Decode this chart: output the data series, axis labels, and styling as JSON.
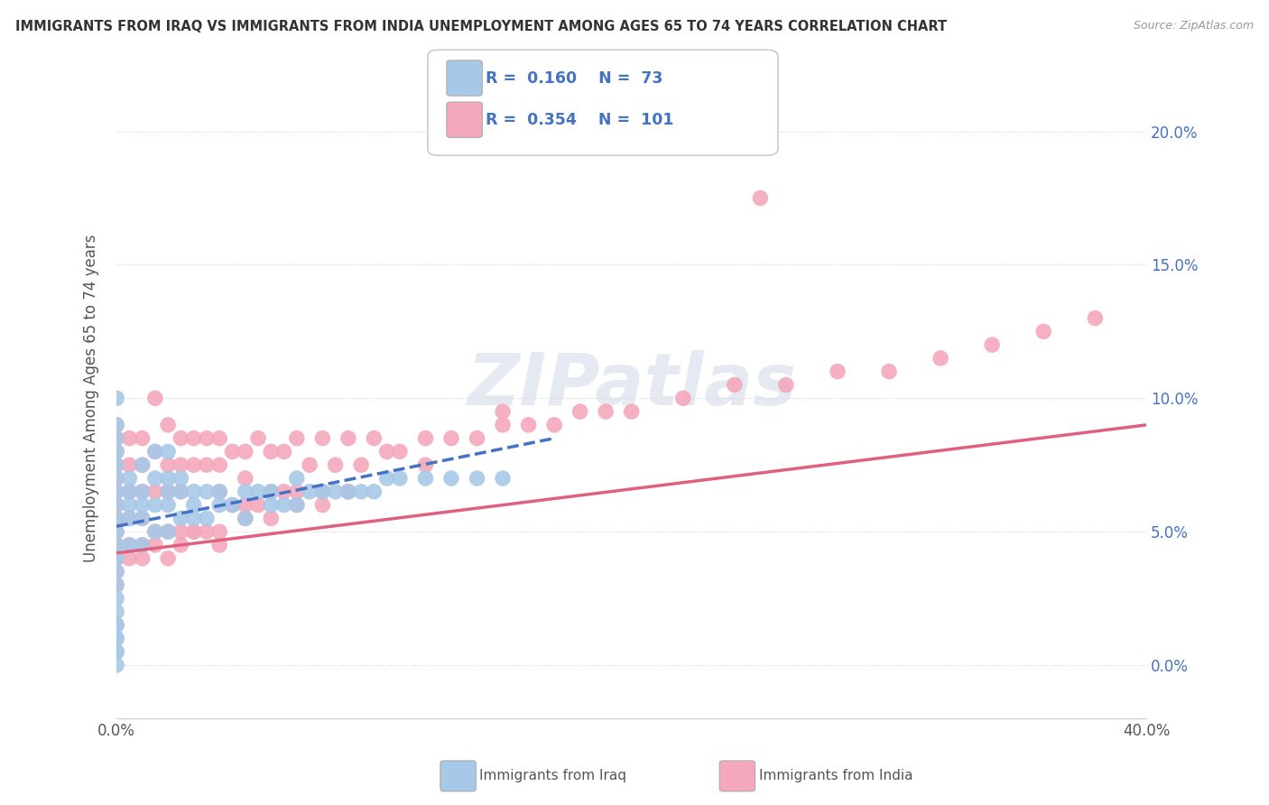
{
  "title": "IMMIGRANTS FROM IRAQ VS IMMIGRANTS FROM INDIA UNEMPLOYMENT AMONG AGES 65 TO 74 YEARS CORRELATION CHART",
  "source": "Source: ZipAtlas.com",
  "ylabel": "Unemployment Among Ages 65 to 74 years",
  "xlim": [
    0.0,
    0.4
  ],
  "ylim": [
    -0.02,
    0.22
  ],
  "yticks": [
    0.0,
    0.05,
    0.1,
    0.15,
    0.2
  ],
  "ytick_labels": [
    "0.0%",
    "5.0%",
    "10.0%",
    "15.0%",
    "20.0%"
  ],
  "iraq_color": "#a8c8e8",
  "india_color": "#f4a8bc",
  "iraq_line_color": "#4472c4",
  "india_line_color": "#e06080",
  "iraq_R": 0.16,
  "iraq_N": 73,
  "india_R": 0.354,
  "india_N": 101,
  "legend_label_iraq": "Immigrants from Iraq",
  "legend_label_india": "Immigrants from India",
  "watermark": "ZIPatlas",
  "iraq_x": [
    0.0,
    0.0,
    0.0,
    0.0,
    0.0,
    0.0,
    0.0,
    0.0,
    0.0,
    0.0,
    0.0,
    0.0,
    0.0,
    0.0,
    0.0,
    0.0,
    0.0,
    0.0,
    0.0,
    0.0,
    0.005,
    0.005,
    0.005,
    0.005,
    0.005,
    0.01,
    0.01,
    0.01,
    0.01,
    0.01,
    0.015,
    0.015,
    0.015,
    0.015,
    0.02,
    0.02,
    0.02,
    0.02,
    0.02,
    0.025,
    0.025,
    0.025,
    0.03,
    0.03,
    0.03,
    0.035,
    0.035,
    0.04,
    0.04,
    0.045,
    0.05,
    0.05,
    0.055,
    0.06,
    0.06,
    0.065,
    0.07,
    0.07,
    0.075,
    0.08,
    0.085,
    0.09,
    0.095,
    0.1,
    0.105,
    0.11,
    0.12,
    0.13,
    0.14,
    0.15,
    0.0,
    0.0,
    0.0
  ],
  "iraq_y": [
    0.1,
    0.09,
    0.085,
    0.08,
    0.075,
    0.07,
    0.065,
    0.06,
    0.055,
    0.05,
    0.045,
    0.04,
    0.035,
    0.03,
    0.025,
    0.02,
    0.015,
    0.01,
    0.005,
    0.0,
    0.07,
    0.065,
    0.06,
    0.055,
    0.045,
    0.075,
    0.065,
    0.06,
    0.055,
    0.045,
    0.08,
    0.07,
    0.06,
    0.05,
    0.08,
    0.07,
    0.065,
    0.06,
    0.05,
    0.07,
    0.065,
    0.055,
    0.065,
    0.06,
    0.055,
    0.065,
    0.055,
    0.065,
    0.06,
    0.06,
    0.065,
    0.055,
    0.065,
    0.065,
    0.06,
    0.06,
    0.07,
    0.06,
    0.065,
    0.065,
    0.065,
    0.065,
    0.065,
    0.065,
    0.07,
    0.07,
    0.07,
    0.07,
    0.07,
    0.07,
    0.015,
    0.01,
    0.005
  ],
  "india_x": [
    0.0,
    0.0,
    0.0,
    0.0,
    0.0,
    0.0,
    0.0,
    0.0,
    0.0,
    0.0,
    0.0,
    0.0,
    0.005,
    0.005,
    0.005,
    0.005,
    0.005,
    0.01,
    0.01,
    0.01,
    0.01,
    0.01,
    0.015,
    0.015,
    0.015,
    0.015,
    0.02,
    0.02,
    0.02,
    0.02,
    0.025,
    0.025,
    0.025,
    0.025,
    0.03,
    0.03,
    0.03,
    0.035,
    0.035,
    0.035,
    0.04,
    0.04,
    0.04,
    0.04,
    0.045,
    0.045,
    0.05,
    0.05,
    0.05,
    0.055,
    0.055,
    0.06,
    0.06,
    0.065,
    0.065,
    0.07,
    0.07,
    0.075,
    0.08,
    0.08,
    0.085,
    0.09,
    0.09,
    0.095,
    0.1,
    0.105,
    0.11,
    0.12,
    0.13,
    0.14,
    0.15,
    0.16,
    0.17,
    0.18,
    0.19,
    0.2,
    0.22,
    0.24,
    0.26,
    0.28,
    0.3,
    0.32,
    0.34,
    0.36,
    0.38,
    0.0,
    0.005,
    0.01,
    0.015,
    0.02,
    0.025,
    0.03,
    0.04,
    0.05,
    0.06,
    0.07,
    0.08,
    0.09,
    0.12,
    0.15,
    0.25
  ],
  "india_y": [
    0.09,
    0.085,
    0.08,
    0.075,
    0.07,
    0.065,
    0.06,
    0.055,
    0.05,
    0.045,
    0.04,
    0.035,
    0.085,
    0.075,
    0.065,
    0.055,
    0.045,
    0.085,
    0.075,
    0.065,
    0.055,
    0.045,
    0.1,
    0.08,
    0.065,
    0.05,
    0.09,
    0.075,
    0.065,
    0.05,
    0.085,
    0.075,
    0.065,
    0.05,
    0.085,
    0.075,
    0.05,
    0.085,
    0.075,
    0.05,
    0.085,
    0.075,
    0.065,
    0.045,
    0.08,
    0.06,
    0.08,
    0.07,
    0.06,
    0.085,
    0.06,
    0.08,
    0.065,
    0.08,
    0.065,
    0.085,
    0.065,
    0.075,
    0.085,
    0.065,
    0.075,
    0.085,
    0.065,
    0.075,
    0.085,
    0.08,
    0.08,
    0.085,
    0.085,
    0.085,
    0.09,
    0.09,
    0.09,
    0.095,
    0.095,
    0.095,
    0.1,
    0.105,
    0.105,
    0.11,
    0.11,
    0.115,
    0.12,
    0.125,
    0.13,
    0.03,
    0.04,
    0.04,
    0.045,
    0.04,
    0.045,
    0.05,
    0.05,
    0.055,
    0.055,
    0.06,
    0.06,
    0.065,
    0.075,
    0.095,
    0.175
  ]
}
